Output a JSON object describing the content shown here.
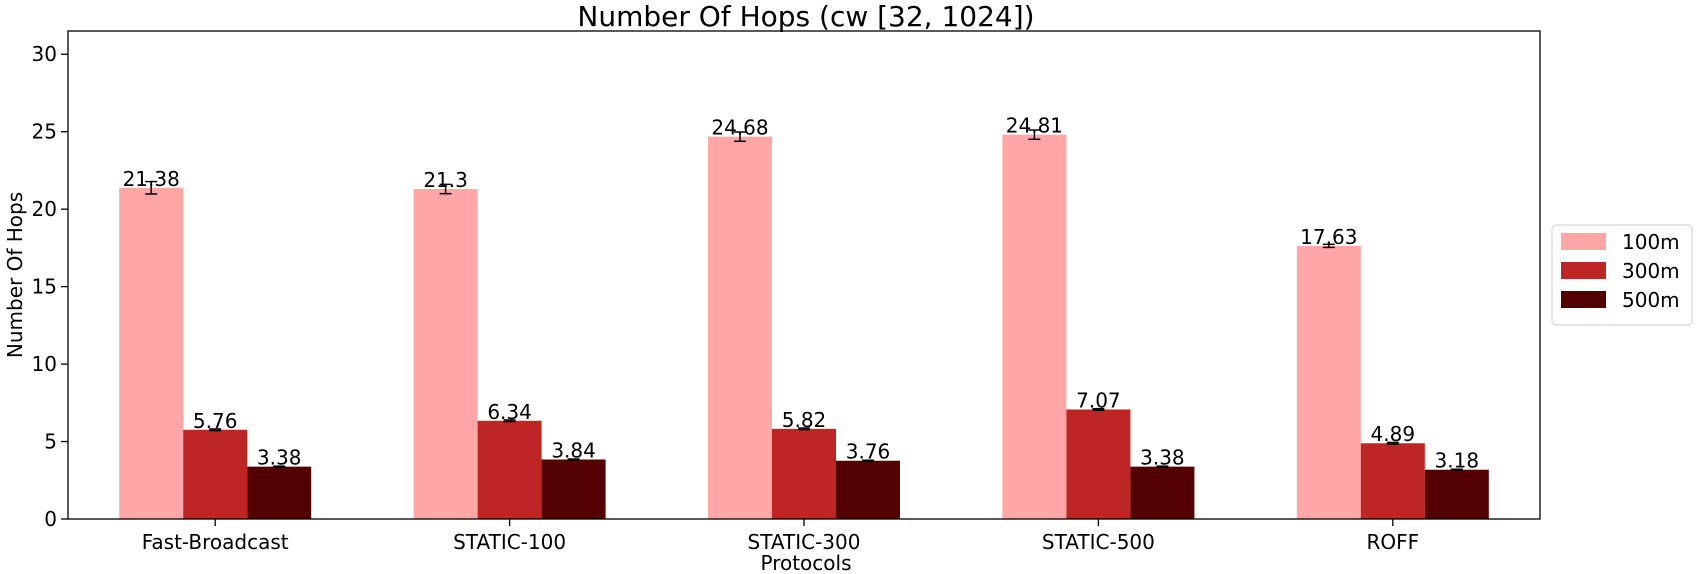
{
  "chart_data": {
    "type": "bar",
    "title": "Number Of Hops (cw [32, 1024])",
    "xlabel": "Protocols",
    "ylabel": "Number Of Hops",
    "categories": [
      "Fast-Broadcast",
      "STATIC-100",
      "STATIC-300",
      "STATIC-500",
      "ROFF"
    ],
    "ylim": [
      0,
      31.5
    ],
    "yticks": [
      0,
      5,
      10,
      15,
      20,
      25,
      30
    ],
    "grid": false,
    "legend_position": "right",
    "series": [
      {
        "name": "100m",
        "color": "#ffa6a6",
        "values": [
          21.38,
          21.3,
          24.68,
          24.81,
          17.63
        ],
        "labels": [
          "21.38",
          "21.3",
          "24.68",
          "24.81",
          "17.63"
        ],
        "errors": [
          0.4,
          0.3,
          0.3,
          0.3,
          0.1
        ]
      },
      {
        "name": "300m",
        "color": "#be2525",
        "values": [
          5.76,
          6.34,
          5.82,
          7.07,
          4.89
        ],
        "labels": [
          "5.76",
          "6.34",
          "5.82",
          "7.07",
          "4.89"
        ],
        "errors": [
          0.05,
          0.05,
          0.05,
          0.05,
          0.05
        ]
      },
      {
        "name": "500m",
        "color": "#520000",
        "values": [
          3.38,
          3.84,
          3.76,
          3.38,
          3.18
        ],
        "labels": [
          "3.38",
          "3.84",
          "3.76",
          "3.38",
          "3.18"
        ],
        "errors": [
          0.03,
          0.03,
          0.03,
          0.03,
          0.03
        ]
      }
    ]
  }
}
